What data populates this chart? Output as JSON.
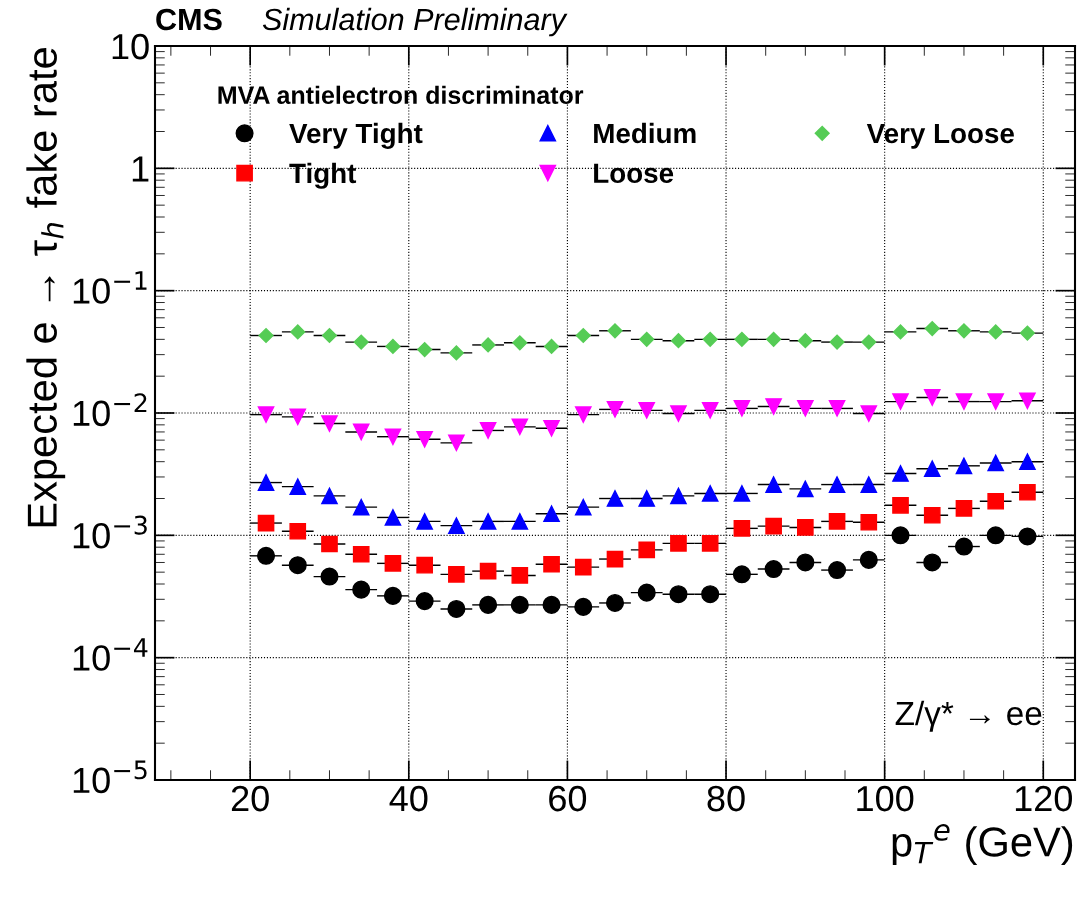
{
  "chart_data": {
    "type": "scatter",
    "title": "CMS",
    "subtitle": "Simulation Preliminary",
    "xlabel": "p$_{T}$$^{e}$ (GeV)",
    "ylabel": "Expected e → τ$_{h}$ fake rate",
    "legend_title": "MVA antielectron discriminator",
    "legend": "top",
    "grid": true,
    "log": "y",
    "annotations": [
      "Z/γ* → ee"
    ],
    "x": [
      22,
      26,
      30,
      34,
      38,
      42,
      46,
      50,
      54,
      58,
      62,
      66,
      70,
      74,
      78,
      82,
      86,
      90,
      94,
      98,
      102,
      106,
      110,
      114,
      118
    ],
    "xlim": [
      8,
      124
    ],
    "xticks": [
      20,
      40,
      60,
      80,
      100,
      120
    ],
    "ylim": [
      1e-05,
      10
    ],
    "yticks": [
      {
        "value": 1e-05,
        "label": "10$^{−5}$"
      },
      {
        "value": 0.0001,
        "label": "10$^{−4}$"
      },
      {
        "value": 0.001,
        "label": "10$^{−3}$"
      },
      {
        "value": 0.01,
        "label": "10$^{−2}$"
      },
      {
        "value": 0.1,
        "label": "10$^{−1}$"
      },
      1,
      10
    ],
    "series": [
      {
        "name": "Very Tight",
        "color": "#000000",
        "marker": "circle",
        "xerrors": [
          2,
          2,
          2,
          2,
          2,
          2,
          2,
          2,
          2,
          2,
          2,
          2,
          2,
          2,
          2,
          2,
          2,
          2,
          2,
          2,
          2,
          2,
          2,
          2,
          2
        ],
        "values": [
          0.00068,
          0.00057,
          0.00046,
          0.00036,
          0.00032,
          0.00029,
          0.00025,
          0.00027,
          0.00027,
          0.00027,
          0.00026,
          0.00028,
          0.00034,
          0.00033,
          0.00033,
          0.00048,
          0.00053,
          0.0006,
          0.00052,
          0.00063,
          0.001,
          0.0006,
          0.00081,
          0.001,
          0.00098
        ]
      },
      {
        "name": "Tight",
        "color": "#ff0000",
        "marker": "square",
        "xerrors": [
          2,
          2,
          2,
          2,
          2,
          2,
          2,
          2,
          2,
          2,
          2,
          2,
          2,
          2,
          2,
          2,
          2,
          2,
          2,
          2,
          2,
          2,
          2,
          2,
          2
        ],
        "values": [
          0.00126,
          0.00108,
          0.00085,
          0.0007,
          0.00059,
          0.00057,
          0.00048,
          0.00051,
          0.00047,
          0.00058,
          0.00055,
          0.00064,
          0.00076,
          0.00086,
          0.00086,
          0.00114,
          0.00119,
          0.00116,
          0.0013,
          0.00128,
          0.00176,
          0.00146,
          0.00166,
          0.0019,
          0.00225
        ]
      },
      {
        "name": "Medium",
        "color": "#0000ff",
        "marker": "triangle",
        "xerrors": [
          2,
          2,
          2,
          2,
          2,
          2,
          2,
          2,
          2,
          2,
          2,
          2,
          2,
          2,
          2,
          2,
          2,
          2,
          2,
          2,
          2,
          2,
          2,
          2,
          2
        ],
        "values": [
          0.0027,
          0.0025,
          0.0021,
          0.0017,
          0.0014,
          0.0013,
          0.0012,
          0.0013,
          0.0013,
          0.0015,
          0.0017,
          0.002,
          0.002,
          0.0021,
          0.0022,
          0.0022,
          0.0026,
          0.0024,
          0.0026,
          0.0026,
          0.0032,
          0.0035,
          0.0037,
          0.0039,
          0.004
        ]
      },
      {
        "name": "Loose",
        "color": "#ff00ff",
        "marker": "triangle_down",
        "xerrors": [
          2,
          2,
          2,
          2,
          2,
          2,
          2,
          2,
          2,
          2,
          2,
          2,
          2,
          2,
          2,
          2,
          2,
          2,
          2,
          2,
          2,
          2,
          2,
          2,
          2
        ],
        "values": [
          0.0097,
          0.0093,
          0.0082,
          0.007,
          0.0064,
          0.0061,
          0.0057,
          0.0072,
          0.0077,
          0.0075,
          0.0097,
          0.0107,
          0.0105,
          0.0099,
          0.0105,
          0.0109,
          0.0113,
          0.0109,
          0.0109,
          0.0099,
          0.0124,
          0.0134,
          0.0124,
          0.0124,
          0.0126
        ]
      },
      {
        "name": "Very Loose",
        "color": "#55cc55",
        "marker": "diamond",
        "xerrors": [
          2,
          2,
          2,
          2,
          2,
          2,
          2,
          2,
          2,
          2,
          2,
          2,
          2,
          2,
          2,
          2,
          2,
          2,
          2,
          2,
          2,
          2,
          2,
          2,
          2
        ],
        "values": [
          0.043,
          0.046,
          0.043,
          0.038,
          0.035,
          0.033,
          0.031,
          0.036,
          0.0375,
          0.035,
          0.043,
          0.047,
          0.04,
          0.039,
          0.04,
          0.04,
          0.04,
          0.039,
          0.038,
          0.038,
          0.046,
          0.049,
          0.047,
          0.046,
          0.045
        ]
      }
    ]
  }
}
